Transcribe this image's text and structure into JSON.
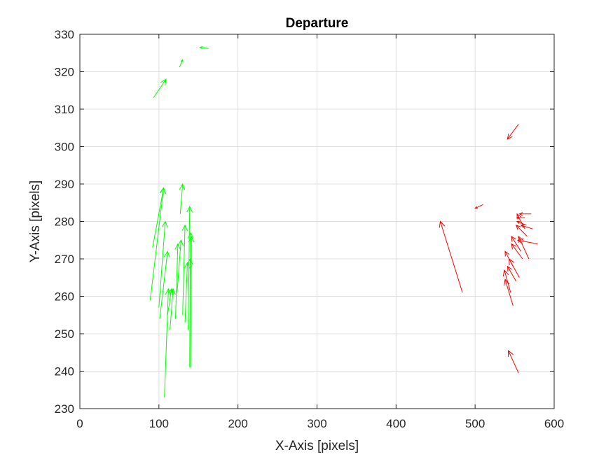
{
  "chart_data": {
    "type": "quiver",
    "title": "Departure",
    "xlabel": "X-Axis [pixels]",
    "ylabel": "Y-Axis [pixels]",
    "xlim": [
      0,
      600
    ],
    "ylim": [
      230,
      330
    ],
    "xticks": [
      0,
      100,
      200,
      300,
      400,
      500,
      600
    ],
    "yticks": [
      230,
      240,
      250,
      260,
      270,
      280,
      290,
      300,
      310,
      320,
      330
    ],
    "grid": true,
    "series": [
      {
        "color": "#00ff00",
        "vectors": [
          {
            "x": 163,
            "y": 326.2,
            "u": -11,
            "v": 0.3
          },
          {
            "x": 126,
            "y": 321.2,
            "u": 4,
            "v": 2
          },
          {
            "x": 93,
            "y": 313,
            "u": 16,
            "v": 5
          },
          {
            "x": 89,
            "y": 259,
            "u": 17,
            "v": 30
          },
          {
            "x": 92,
            "y": 273,
            "u": 14,
            "v": 16
          },
          {
            "x": 100,
            "y": 257,
            "u": 8,
            "v": 23
          },
          {
            "x": 101,
            "y": 254,
            "u": 10,
            "v": 18
          },
          {
            "x": 107,
            "y": 233,
            "u": 5,
            "v": 29
          },
          {
            "x": 111,
            "y": 255,
            "u": 5,
            "v": 7
          },
          {
            "x": 114,
            "y": 251,
            "u": 4,
            "v": 11
          },
          {
            "x": 121,
            "y": 254,
            "u": 3,
            "v": 20
          },
          {
            "x": 123,
            "y": 261,
            "u": 5,
            "v": 14
          },
          {
            "x": 127,
            "y": 282,
            "u": 3,
            "v": 8
          },
          {
            "x": 130,
            "y": 255,
            "u": 3,
            "v": 24
          },
          {
            "x": 133,
            "y": 253,
            "u": 3,
            "v": 16
          },
          {
            "x": 137,
            "y": 251,
            "u": 2,
            "v": 33
          },
          {
            "x": 139,
            "y": 241,
            "u": 0.5,
            "v": 29
          },
          {
            "x": 140,
            "y": 241,
            "u": 1,
            "v": 35
          },
          {
            "x": 141,
            "y": 262,
            "u": -1,
            "v": 15
          }
        ]
      },
      {
        "color": "#ff0000",
        "vectors": [
          {
            "x": 555,
            "y": 306,
            "u": -14,
            "v": -4
          },
          {
            "x": 484,
            "y": 261,
            "u": -28,
            "v": 19
          },
          {
            "x": 510,
            "y": 284.5,
            "u": -10,
            "v": -1
          },
          {
            "x": 555,
            "y": 239.5,
            "u": -13,
            "v": 6
          },
          {
            "x": 548,
            "y": 257.5,
            "u": -10,
            "v": 7
          },
          {
            "x": 545,
            "y": 261,
            "u": -8,
            "v": 6
          },
          {
            "x": 552,
            "y": 264,
            "u": -11,
            "v": 4
          },
          {
            "x": 548,
            "y": 268,
            "u": -10,
            "v": 4
          },
          {
            "x": 556,
            "y": 265,
            "u": -13,
            "v": 5
          },
          {
            "x": 560,
            "y": 270,
            "u": -14,
            "v": 4
          },
          {
            "x": 558,
            "y": 272,
            "u": -12,
            "v": 4
          },
          {
            "x": 566,
            "y": 276,
            "u": -14,
            "v": 3
          },
          {
            "x": 565,
            "y": 279,
            "u": -12,
            "v": 1
          },
          {
            "x": 563,
            "y": 281,
            "u": -10,
            "v": 0
          },
          {
            "x": 573,
            "y": 278,
            "u": -15,
            "v": 1
          },
          {
            "x": 579,
            "y": 274,
            "u": -25,
            "v": 1
          },
          {
            "x": 571,
            "y": 282,
            "u": -15,
            "v": 0
          },
          {
            "x": 568,
            "y": 270,
            "u": -13,
            "v": 6
          },
          {
            "x": 563,
            "y": 278,
            "u": -10,
            "v": 4
          }
        ]
      }
    ]
  }
}
